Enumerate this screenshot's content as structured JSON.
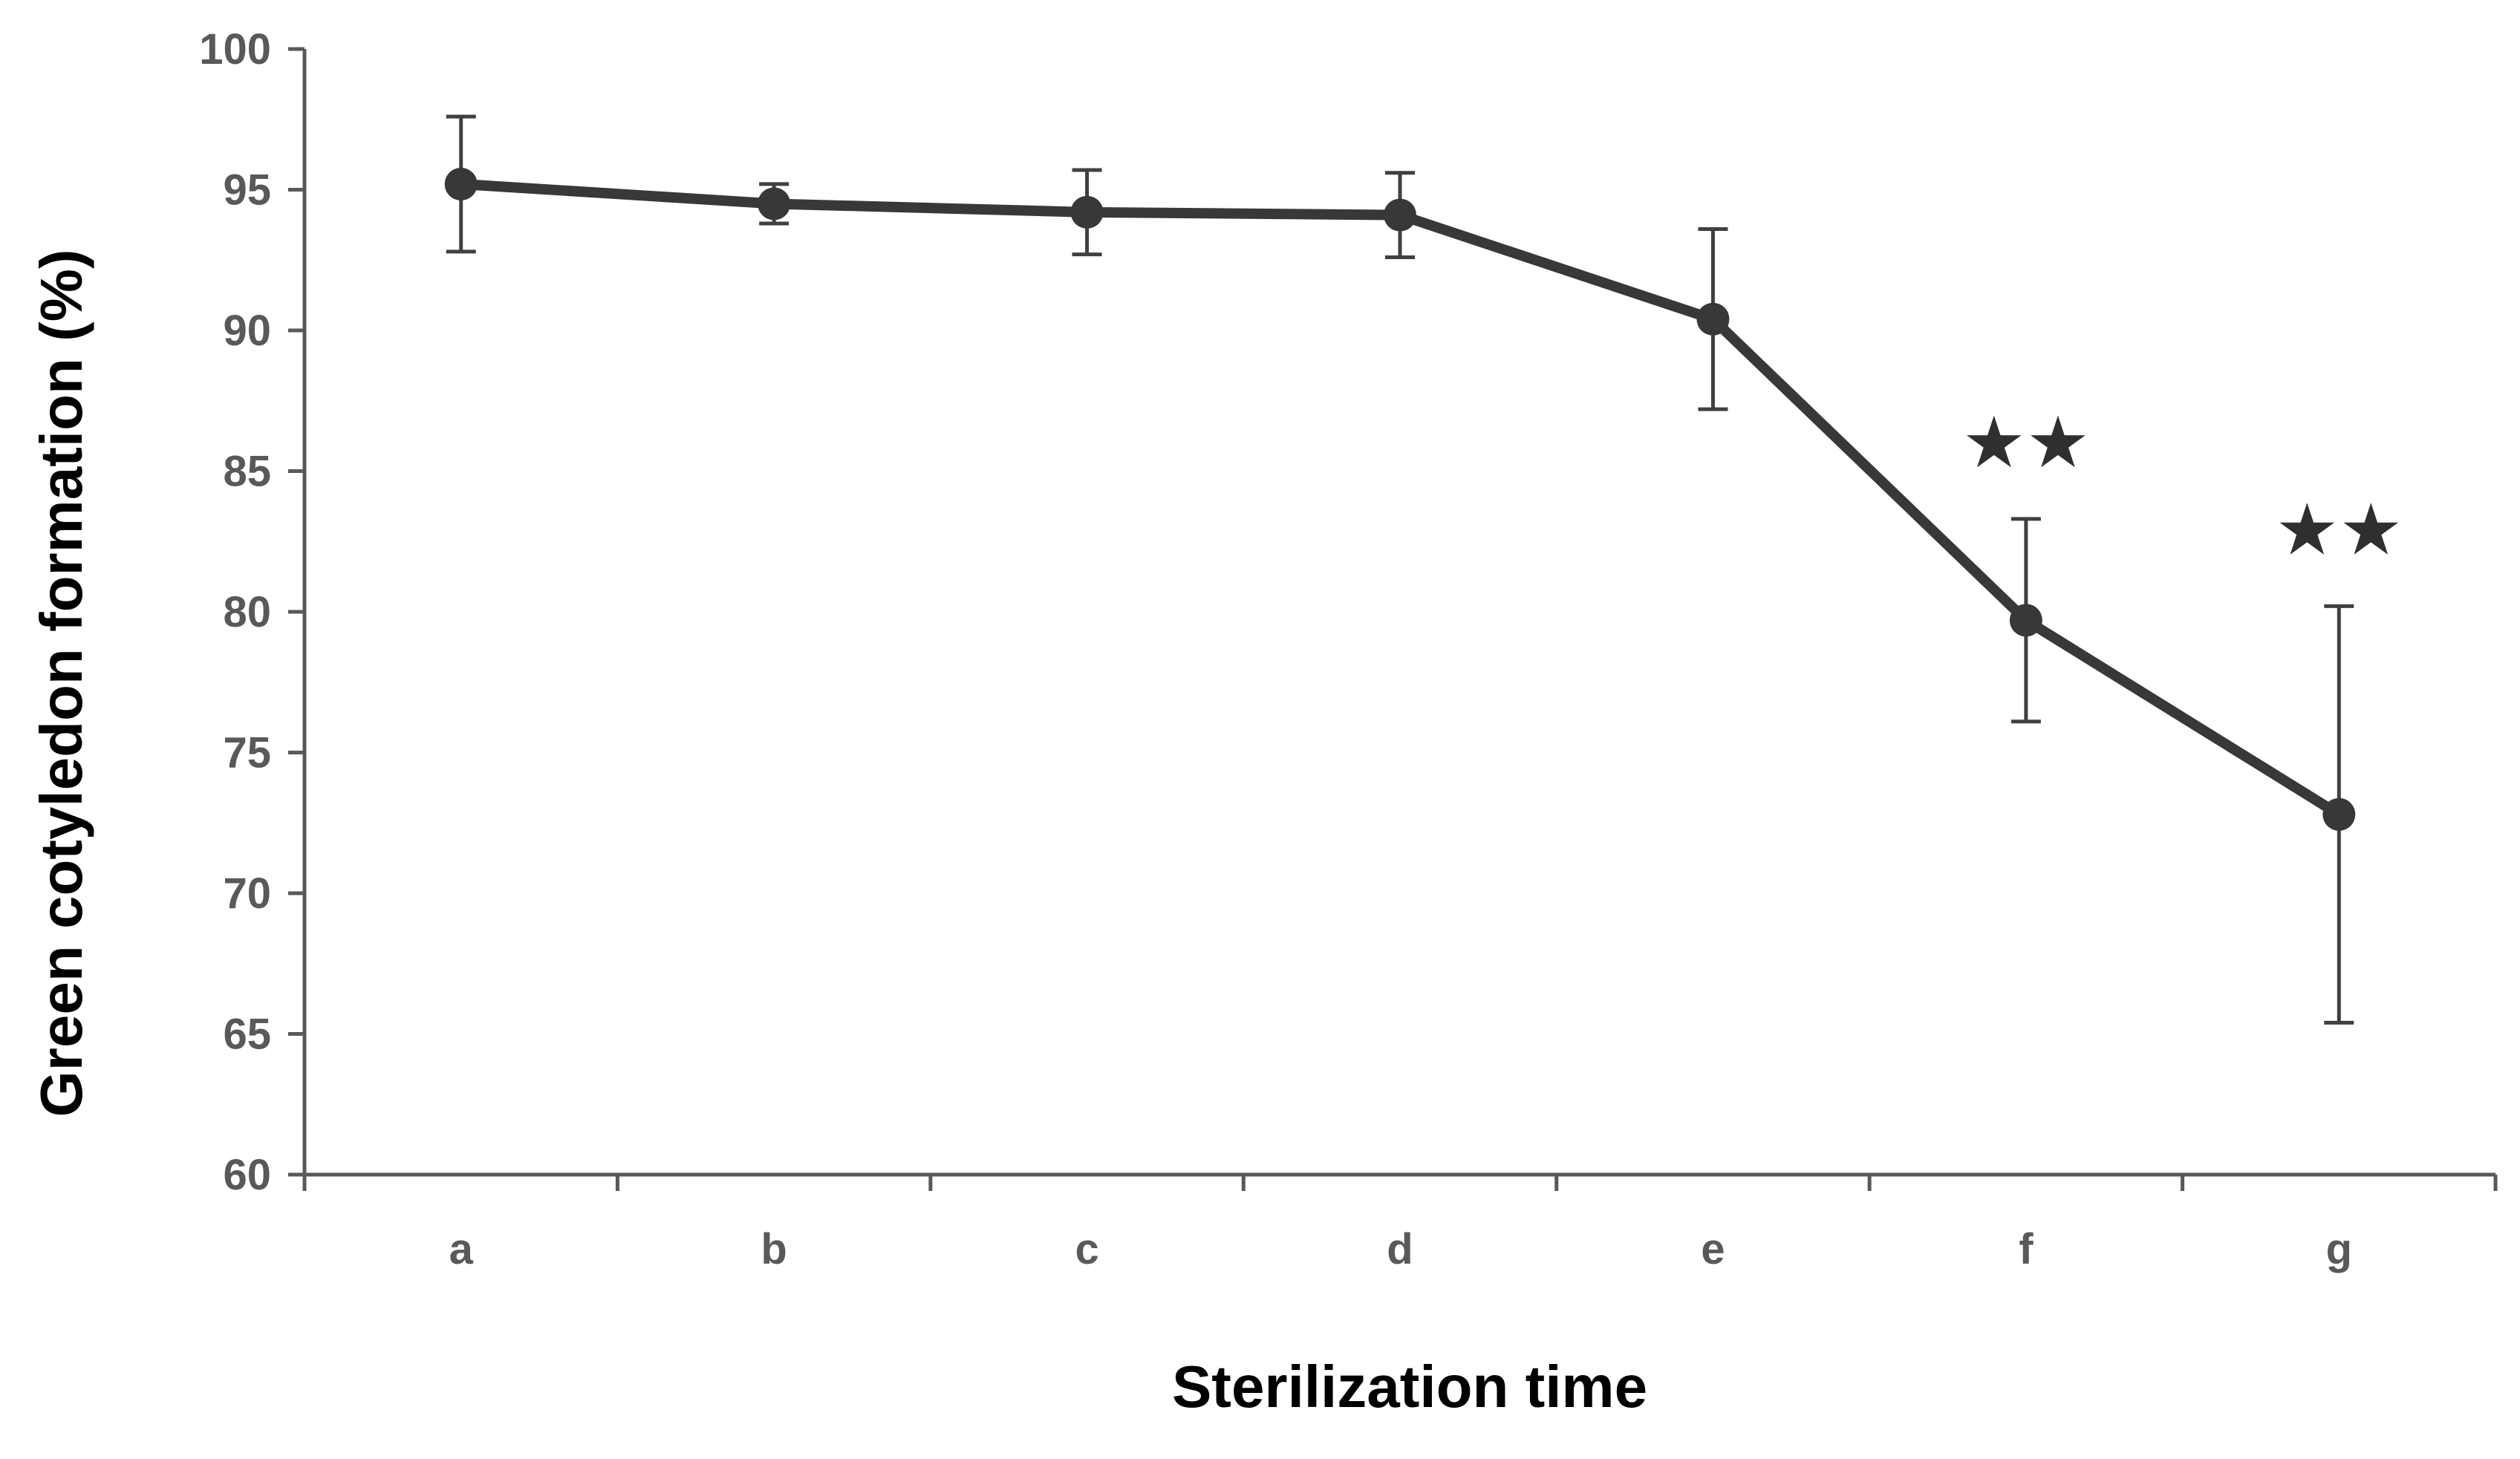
{
  "chart_data": {
    "type": "line",
    "title": "",
    "xlabel": "Sterilization time",
    "ylabel": "Green cotyledon formation (%)",
    "ylim": [
      60,
      100
    ],
    "yticks": [
      60,
      65,
      70,
      75,
      80,
      85,
      90,
      95,
      100
    ],
    "categories": [
      "a",
      "b",
      "c",
      "d",
      "e",
      "f",
      "g"
    ],
    "series": [
      {
        "name": "Green cotyledon formation",
        "values": [
          95.2,
          94.5,
          94.2,
          94.1,
          90.4,
          79.7,
          72.8
        ],
        "error": [
          2.4,
          0.7,
          1.5,
          1.5,
          3.2,
          3.6,
          7.4
        ],
        "color": "#383838"
      }
    ],
    "annotations": [
      {
        "category": "f",
        "text": "★★"
      },
      {
        "category": "g",
        "text": "★★"
      }
    ],
    "grid": false,
    "legend": "none"
  }
}
